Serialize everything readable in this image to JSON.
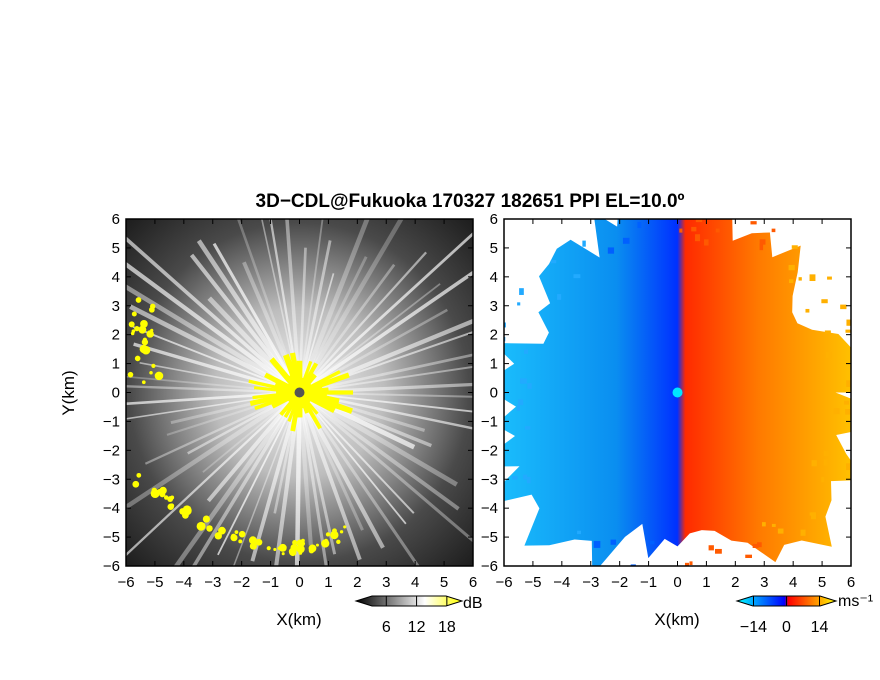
{
  "title": "3D−CDL@Fukuoka 170327 182651 PPI EL=10.0º",
  "chart_data": [
    {
      "type": "heatmap",
      "field": "reflectivity",
      "xlabel": "X(km)",
      "ylabel": "Y(km)",
      "xlim": [
        -6,
        6
      ],
      "ylim": [
        -6,
        6
      ],
      "xticks": [
        "−6",
        "−5",
        "−4",
        "−3",
        "−2",
        "−1",
        "0",
        "1",
        "2",
        "3",
        "4",
        "5",
        "6"
      ],
      "yticks": [
        "−6",
        "−5",
        "−4",
        "−3",
        "−2",
        "−1",
        "0",
        "1",
        "2",
        "3",
        "4",
        "5",
        "6"
      ],
      "colorbar": {
        "unit": "dB",
        "ticks": [
          "6",
          "12",
          "18"
        ],
        "range": [
          0,
          21
        ],
        "colors": [
          "#000000",
          "#ffffff",
          "#ffff00"
        ]
      },
      "radar_origin": [
        0,
        0
      ],
      "radar_marker_color": "#555555"
    },
    {
      "type": "heatmap",
      "field": "doppler_velocity",
      "xlabel": "X(km)",
      "xlim": [
        -6,
        6
      ],
      "ylim": [
        -6,
        6
      ],
      "xticks": [
        "−6",
        "−5",
        "−4",
        "−3",
        "−2",
        "−1",
        "0",
        "1",
        "2",
        "3",
        "4",
        "5",
        "6"
      ],
      "yticks": [
        "−6",
        "−5",
        "−4",
        "−3",
        "−2",
        "−1",
        "0",
        "1",
        "2",
        "3",
        "4",
        "5",
        "6"
      ],
      "colorbar": {
        "unit": "ms⁻¹",
        "ticks": [
          "−14",
          "0",
          "14"
        ],
        "range": [
          -21,
          21
        ],
        "colors": [
          "#00ffff",
          "#0000ff",
          "#ff0000",
          "#ffff00"
        ]
      },
      "radar_origin": [
        0,
        0
      ],
      "radar_marker_color": "#00e5ff"
    }
  ]
}
